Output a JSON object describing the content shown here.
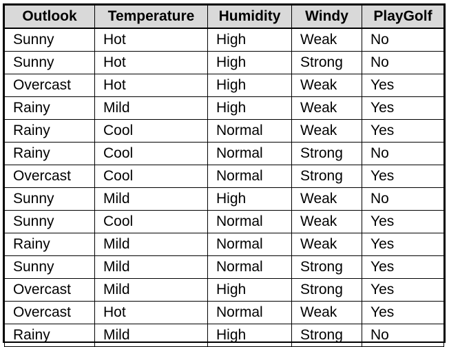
{
  "table": {
    "columns": [
      "Outlook",
      "Temperature",
      "Humidity",
      "Windy",
      "PlayGolf"
    ],
    "rows": [
      [
        "Sunny",
        "Hot",
        "High",
        "Weak",
        "No"
      ],
      [
        "Sunny",
        "Hot",
        "High",
        "Strong",
        "No"
      ],
      [
        "Overcast",
        "Hot",
        "High",
        "Weak",
        "Yes"
      ],
      [
        "Rainy",
        "Mild",
        "High",
        "Weak",
        "Yes"
      ],
      [
        "Rainy",
        "Cool",
        "Normal",
        "Weak",
        "Yes"
      ],
      [
        "Rainy",
        "Cool",
        "Normal",
        "Strong",
        "No"
      ],
      [
        "Overcast",
        "Cool",
        "Normal",
        "Strong",
        "Yes"
      ],
      [
        "Sunny",
        "Mild",
        "High",
        "Weak",
        "No"
      ],
      [
        "Sunny",
        "Cool",
        "Normal",
        "Weak",
        "Yes"
      ],
      [
        "Rainy",
        "Mild",
        "Normal",
        "Weak",
        "Yes"
      ],
      [
        "Sunny",
        "Mild",
        "Normal",
        "Strong",
        "Yes"
      ],
      [
        "Overcast",
        "Mild",
        "High",
        "Strong",
        "Yes"
      ],
      [
        "Overcast",
        "Hot",
        "Normal",
        "Weak",
        "Yes"
      ],
      [
        "Rainy",
        "Mild",
        "High",
        "Strong",
        "No"
      ]
    ]
  },
  "colors": {
    "header_bg": "#d9d9d9",
    "border": "#000000",
    "text": "#000000",
    "background": "#ffffff"
  }
}
